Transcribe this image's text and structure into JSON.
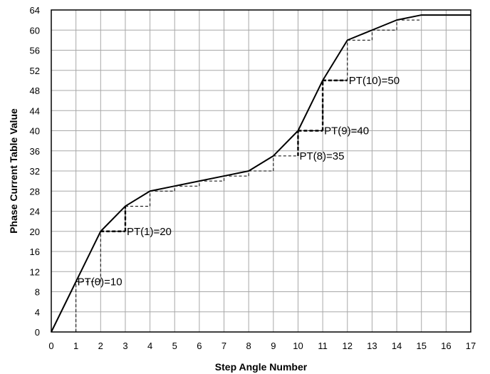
{
  "chart_data": {
    "type": "line",
    "xlabel": "Step Angle Number",
    "ylabel": "Phase Current Table Value",
    "xlim": [
      0,
      17
    ],
    "ylim": [
      0,
      64
    ],
    "x_ticks": [
      0,
      1,
      2,
      3,
      4,
      5,
      6,
      7,
      8,
      9,
      10,
      11,
      12,
      13,
      14,
      15,
      16,
      17
    ],
    "y_ticks": [
      0,
      4,
      8,
      12,
      16,
      20,
      24,
      28,
      32,
      36,
      40,
      44,
      48,
      52,
      56,
      60,
      64
    ],
    "grid": true,
    "series": [
      {
        "style": "solid",
        "x": [
          0,
          1,
          2,
          3,
          4,
          5,
          6,
          7,
          8,
          9,
          10,
          11,
          12,
          13,
          14,
          15,
          16,
          17
        ],
        "y": [
          0,
          10,
          20,
          25,
          28,
          29,
          30,
          31,
          32,
          35,
          40,
          50,
          58,
          60,
          62,
          63,
          63,
          63
        ]
      }
    ],
    "interpolated_steps": [
      {
        "x0": 1,
        "x1": 2,
        "y": 10
      },
      {
        "x0": 2,
        "x1": 3,
        "y": 20
      },
      {
        "x0": 3,
        "x1": 4,
        "y": 25
      },
      {
        "x0": 4,
        "x1": 5,
        "y": 28
      },
      {
        "x0": 5,
        "x1": 6,
        "y": 29
      },
      {
        "x0": 6,
        "x1": 7,
        "y": 30
      },
      {
        "x0": 7,
        "x1": 8,
        "y": 31
      },
      {
        "x0": 8,
        "x1": 9,
        "y": 32
      },
      {
        "x0": 9,
        "x1": 10,
        "y": 35
      },
      {
        "x0": 10,
        "x1": 11,
        "y": 40
      },
      {
        "x0": 11,
        "x1": 12,
        "y": 50
      },
      {
        "x0": 12,
        "x1": 13,
        "y": 58
      },
      {
        "x0": 13,
        "x1": 14,
        "y": 60
      },
      {
        "x0": 14,
        "x1": 15,
        "y": 62
      }
    ],
    "highlighted_steps": [
      {
        "x0": 2,
        "x1": 3,
        "y": 20
      },
      {
        "x0": 10,
        "x1": 11,
        "y": 40
      },
      {
        "x0": 11,
        "x1": 12,
        "y": 50
      }
    ],
    "highlighted_risers": [
      {
        "x": 3,
        "y0": 20,
        "y1": 25
      },
      {
        "x": 10,
        "y0": 35,
        "y1": 40
      },
      {
        "x": 11,
        "y0": 40,
        "y1": 50
      }
    ],
    "annotations": [
      {
        "text": "PT(0)=10",
        "x": 1,
        "y": 10
      },
      {
        "text": "PT(1)=20",
        "x": 3,
        "y": 20
      },
      {
        "text": "PT(8)=35",
        "x": 10,
        "y": 35
      },
      {
        "text": "PT(9)=40",
        "x": 11,
        "y": 40
      },
      {
        "text": "PT(10)=50",
        "x": 12,
        "y": 50
      }
    ]
  }
}
